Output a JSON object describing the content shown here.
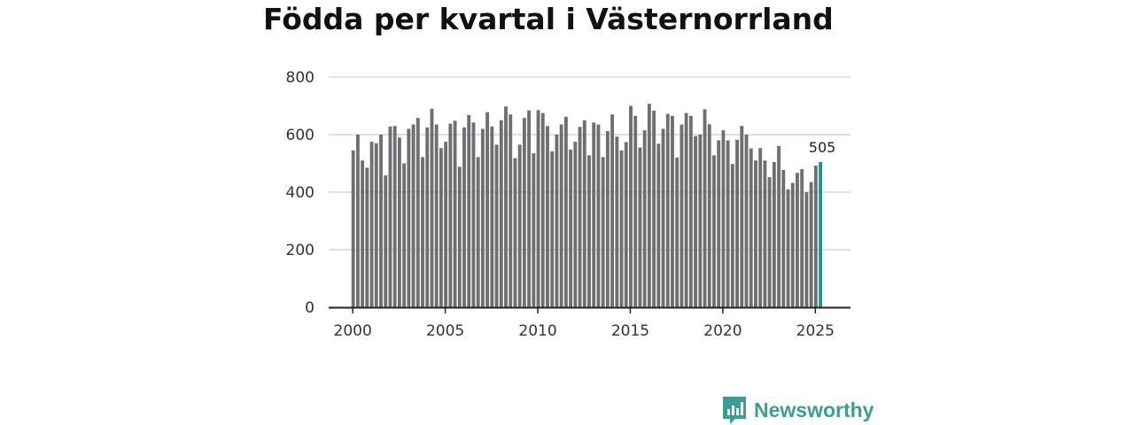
{
  "colors": {
    "bar": "#6f6e73",
    "highlight": "#17998f",
    "grid": "#d6d6d6",
    "axis": "#222222",
    "brand": "#3a9e95"
  },
  "brand": {
    "name": "Newsworthy",
    "icon": "bar-chart-speech-bubble-icon"
  },
  "chart_data": {
    "type": "bar",
    "title": "Födda per kvartal i Västernorrland",
    "xlabel": "",
    "ylabel": "",
    "ylim": [
      0,
      800
    ],
    "yticks": [
      0,
      200,
      400,
      600,
      800
    ],
    "xticks": [
      2000,
      2005,
      2010,
      2015,
      2020,
      2025
    ],
    "xrange": [
      1998.7,
      2026.9
    ],
    "grid": true,
    "x_start": 2000.0,
    "x_step": 0.25,
    "values": [
      545,
      600,
      510,
      485,
      575,
      570,
      600,
      458,
      628,
      630,
      590,
      500,
      620,
      635,
      658,
      522,
      625,
      690,
      635,
      553,
      575,
      638,
      648,
      488,
      625,
      668,
      642,
      522,
      620,
      678,
      628,
      565,
      650,
      698,
      670,
      518,
      565,
      658,
      684,
      535,
      685,
      675,
      630,
      542,
      600,
      635,
      662,
      548,
      575,
      627,
      650,
      528,
      642,
      635,
      522,
      612,
      670,
      593,
      545,
      574,
      700,
      665,
      555,
      615,
      707,
      683,
      568,
      620,
      672,
      665,
      520,
      635,
      675,
      665,
      595,
      600,
      688,
      636,
      528,
      580,
      615,
      580,
      498,
      582,
      630,
      600,
      552,
      510,
      553,
      510,
      452,
      505,
      560,
      477,
      410,
      432,
      467,
      480,
      400,
      435,
      492,
      505
    ],
    "highlight_last": true,
    "data_labels": [
      {
        "value": "505"
      }
    ]
  }
}
